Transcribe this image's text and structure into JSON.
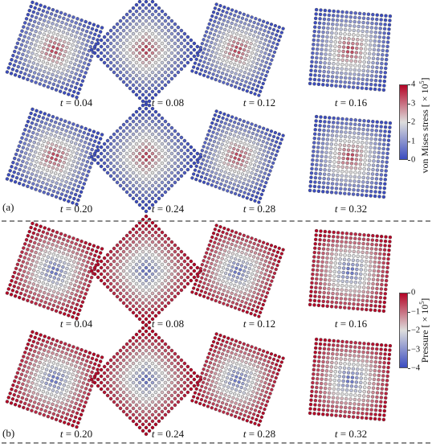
{
  "panels": [
    {
      "tag": "(a)",
      "field": "von Mises stress",
      "colorbar": {
        "title": "von Mises stress",
        "scale_prefix": "[ × 10",
        "scale_exp": "5",
        "scale_suffix": "]",
        "ticks": [
          "4",
          "3",
          "2",
          "1",
          "0"
        ],
        "low_color": "#3b4cc0",
        "mid_color": "#dddddd",
        "high_color": "#b40426"
      },
      "snapshots": [
        {
          "time": "0.04",
          "rotation_deg": 20,
          "scale": 0.96
        },
        {
          "time": "0.08",
          "rotation_deg": 45,
          "scale": 1.0
        },
        {
          "time": "0.12",
          "rotation_deg": 20,
          "scale": 0.92
        },
        {
          "time": "0.16",
          "rotation_deg": 5,
          "scale": 0.96
        },
        {
          "time": "0.20",
          "rotation_deg": 20,
          "scale": 0.96
        },
        {
          "time": "0.24",
          "rotation_deg": 45,
          "scale": 1.0
        },
        {
          "time": "0.28",
          "rotation_deg": 20,
          "scale": 0.92
        },
        {
          "time": "0.32",
          "rotation_deg": 5,
          "scale": 0.96
        }
      ]
    },
    {
      "tag": "(b)",
      "field": "Pressure",
      "colorbar": {
        "title": "Pressure",
        "scale_prefix": "[ × 10",
        "scale_exp": "5",
        "scale_suffix": "]",
        "ticks": [
          "0",
          "−1",
          "−2",
          "−3",
          "−4"
        ],
        "low_color": "#3b4cc0",
        "mid_color": "#dddddd",
        "high_color": "#b40426"
      },
      "snapshots": [
        {
          "time": "0.04",
          "rotation_deg": 20,
          "scale": 0.96
        },
        {
          "time": "0.08",
          "rotation_deg": 45,
          "scale": 1.0
        },
        {
          "time": "0.12",
          "rotation_deg": 20,
          "scale": 0.92
        },
        {
          "time": "0.16",
          "rotation_deg": 5,
          "scale": 0.96
        },
        {
          "time": "0.20",
          "rotation_deg": 20,
          "scale": 0.96
        },
        {
          "time": "0.24",
          "rotation_deg": 45,
          "scale": 1.0
        },
        {
          "time": "0.28",
          "rotation_deg": 20,
          "scale": 0.92
        },
        {
          "time": "0.32",
          "rotation_deg": 5,
          "scale": 0.96
        }
      ]
    }
  ],
  "time_symbol": "t",
  "time_equals": " = ",
  "particle_grid": {
    "rows": 18,
    "cols": 18
  }
}
